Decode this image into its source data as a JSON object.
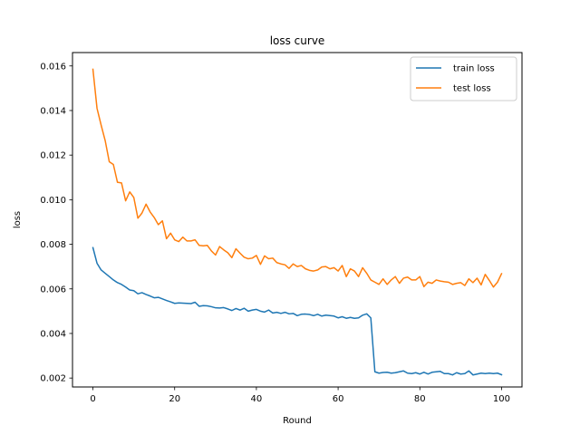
{
  "chart_data": {
    "type": "line",
    "title": "loss curve",
    "xlabel": "Round",
    "ylabel": "loss",
    "xlim": [
      -5,
      105
    ],
    "ylim": [
      0.0016,
      0.0166
    ],
    "xticks": [
      0,
      20,
      40,
      60,
      80,
      100
    ],
    "yticks": [
      0.002,
      0.004,
      0.006,
      0.008,
      0.01,
      0.012,
      0.014,
      0.016
    ],
    "ytick_labels": [
      "0.002",
      "0.004",
      "0.006",
      "0.008",
      "0.010",
      "0.012",
      "0.014",
      "0.016"
    ],
    "grid": false,
    "legend_position": "top-right",
    "x": [
      0,
      1,
      2,
      3,
      4,
      5,
      6,
      7,
      8,
      9,
      10,
      11,
      12,
      13,
      14,
      15,
      16,
      17,
      18,
      19,
      20,
      21,
      22,
      23,
      24,
      25,
      26,
      27,
      28,
      29,
      30,
      31,
      32,
      33,
      34,
      35,
      36,
      37,
      38,
      39,
      40,
      41,
      42,
      43,
      44,
      45,
      46,
      47,
      48,
      49,
      50,
      51,
      52,
      53,
      54,
      55,
      56,
      57,
      58,
      59,
      60,
      61,
      62,
      63,
      64,
      65,
      66,
      67,
      68,
      69,
      70,
      71,
      72,
      73,
      74,
      75,
      76,
      77,
      78,
      79,
      80,
      81,
      82,
      83,
      84,
      85,
      86,
      87,
      88,
      89,
      90,
      91,
      92,
      93,
      94,
      95,
      96,
      97,
      98,
      99,
      100
    ],
    "series": [
      {
        "name": "train loss",
        "color": "#1f77b4",
        "values": [
          0.00785,
          0.00715,
          0.00685,
          0.0067,
          0.00655,
          0.0064,
          0.00628,
          0.0062,
          0.00608,
          0.00595,
          0.00592,
          0.00578,
          0.00583,
          0.00575,
          0.00568,
          0.0056,
          0.00562,
          0.00555,
          0.00548,
          0.00542,
          0.00535,
          0.00537,
          0.00536,
          0.00535,
          0.00534,
          0.0054,
          0.00522,
          0.00525,
          0.00524,
          0.0052,
          0.00515,
          0.00514,
          0.00516,
          0.0051,
          0.00503,
          0.00512,
          0.00505,
          0.00513,
          0.005,
          0.00505,
          0.00508,
          0.005,
          0.00496,
          0.00505,
          0.00492,
          0.00495,
          0.0049,
          0.00495,
          0.00488,
          0.0049,
          0.0048,
          0.00486,
          0.00487,
          0.00485,
          0.0048,
          0.00486,
          0.00478,
          0.00482,
          0.0048,
          0.00478,
          0.0047,
          0.00475,
          0.00468,
          0.00472,
          0.00468,
          0.0047,
          0.00482,
          0.00488,
          0.0047,
          0.00228,
          0.00222,
          0.00225,
          0.00226,
          0.00222,
          0.00224,
          0.00228,
          0.00232,
          0.00222,
          0.0022,
          0.00224,
          0.00218,
          0.00226,
          0.00218,
          0.00226,
          0.00228,
          0.0023,
          0.0022,
          0.0022,
          0.00214,
          0.00224,
          0.00218,
          0.0022,
          0.00232,
          0.00214,
          0.00218,
          0.00222,
          0.0022,
          0.00222,
          0.0022,
          0.00222,
          0.00215
        ]
      },
      {
        "name": "test loss",
        "color": "#ff7f0e",
        "values": [
          0.01585,
          0.0141,
          0.01335,
          0.01265,
          0.0117,
          0.01158,
          0.01078,
          0.01075,
          0.00995,
          0.01035,
          0.0101,
          0.00917,
          0.0094,
          0.0098,
          0.00945,
          0.0092,
          0.00888,
          0.00905,
          0.00825,
          0.0085,
          0.0082,
          0.00812,
          0.00832,
          0.00815,
          0.00815,
          0.0082,
          0.00795,
          0.00793,
          0.00795,
          0.0077,
          0.00752,
          0.0079,
          0.00775,
          0.00762,
          0.0074,
          0.0078,
          0.0076,
          0.00742,
          0.00735,
          0.00738,
          0.0075,
          0.0071,
          0.00748,
          0.00735,
          0.00738,
          0.00718,
          0.00712,
          0.00708,
          0.00692,
          0.00712,
          0.007,
          0.00705,
          0.0069,
          0.00683,
          0.0068,
          0.00685,
          0.00698,
          0.007,
          0.0069,
          0.00695,
          0.0068,
          0.00705,
          0.00655,
          0.0069,
          0.0068,
          0.00655,
          0.00695,
          0.0067,
          0.0064,
          0.0063,
          0.0062,
          0.00645,
          0.0062,
          0.0064,
          0.00655,
          0.00625,
          0.00648,
          0.00653,
          0.0064,
          0.0064,
          0.00655,
          0.0061,
          0.0063,
          0.00625,
          0.0064,
          0.00635,
          0.00632,
          0.0063,
          0.0062,
          0.00625,
          0.00628,
          0.00615,
          0.00645,
          0.00628,
          0.00648,
          0.00618,
          0.00665,
          0.00638,
          0.00608,
          0.0063,
          0.00668
        ]
      }
    ]
  }
}
